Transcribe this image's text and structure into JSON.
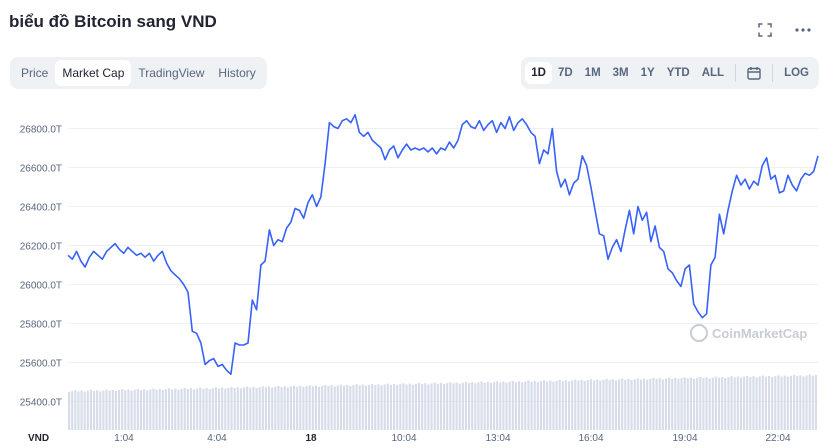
{
  "header": {
    "title": "biểu đồ Bitcoin sang VND"
  },
  "tabs": [
    "Price",
    "Market Cap",
    "TradingView",
    "History"
  ],
  "active_tab": "Market Cap",
  "ranges": [
    "1D",
    "7D",
    "1M",
    "3M",
    "1Y",
    "YTD",
    "ALL"
  ],
  "active_range": "1D",
  "log_label": "LOG",
  "icons": {
    "expand": "expand-icon",
    "more": "more-icon",
    "calendar": "calendar-icon"
  },
  "colors": {
    "line": "#3861fb",
    "volume": "#cfd6e4"
  },
  "watermark": "CoinMarketCap",
  "chart_data": {
    "type": "line",
    "title": "",
    "ylabel": "VND",
    "y_ticks": [
      "26800.0T",
      "26600.0T",
      "26400.0T",
      "26200.0T",
      "26000.0T",
      "25800.0T",
      "25600.0T",
      "25400.0T"
    ],
    "x_ticks": [
      "1:04",
      "4:04",
      "18",
      "10:04",
      "13:04",
      "16:04",
      "19:04",
      "22:04"
    ],
    "x_axis_unit": "VND",
    "ylim": [
      25350,
      26900
    ],
    "values": [
      26150,
      26130,
      26170,
      26120,
      26090,
      26140,
      26170,
      26150,
      26130,
      26170,
      26190,
      26210,
      26180,
      26160,
      26190,
      26170,
      26150,
      26160,
      26140,
      26160,
      26120,
      26150,
      26170,
      26110,
      26070,
      26050,
      26030,
      26000,
      25960,
      25760,
      25750,
      25700,
      25590,
      25610,
      25620,
      25580,
      25590,
      25560,
      25540,
      25700,
      25690,
      25690,
      25700,
      25920,
      25870,
      26100,
      26120,
      26280,
      26200,
      26230,
      26220,
      26290,
      26320,
      26390,
      26380,
      26340,
      26420,
      26460,
      26400,
      26450,
      26620,
      26830,
      26810,
      26800,
      26840,
      26850,
      26830,
      26870,
      26780,
      26760,
      26780,
      26740,
      26720,
      26700,
      26640,
      26690,
      26710,
      26650,
      26690,
      26720,
      26690,
      26700,
      26690,
      26700,
      26680,
      26700,
      26670,
      26700,
      26690,
      26730,
      26700,
      26740,
      26820,
      26840,
      26810,
      26800,
      26840,
      26790,
      26820,
      26840,
      26780,
      26830,
      26800,
      26860,
      26790,
      26830,
      26850,
      26820,
      26780,
      26760,
      26620,
      26690,
      26670,
      26800,
      26580,
      26500,
      26540,
      26460,
      26520,
      26540,
      26660,
      26610,
      26500,
      26380,
      26260,
      26250,
      26130,
      26190,
      26230,
      26170,
      26280,
      26380,
      26260,
      26400,
      26330,
      26370,
      26220,
      26300,
      26190,
      26170,
      26080,
      26060,
      26020,
      25990,
      26080,
      26100,
      25900,
      25860,
      25830,
      25850,
      26100,
      26140,
      26360,
      26260,
      26380,
      26480,
      26560,
      26510,
      26540,
      26490,
      26530,
      26510,
      26610,
      26650,
      26540,
      26560,
      26470,
      26480,
      26560,
      26510,
      26480,
      26540,
      26570,
      26560,
      26580,
      26660
    ]
  }
}
